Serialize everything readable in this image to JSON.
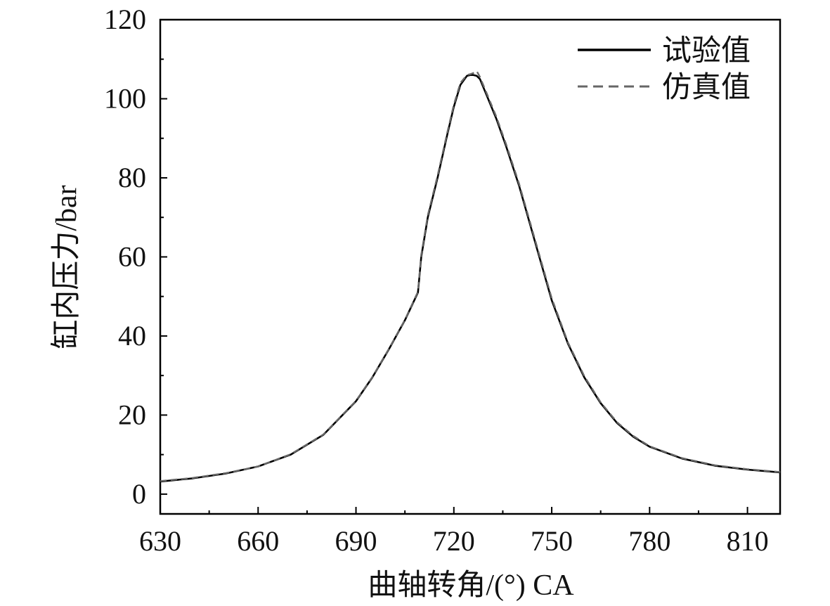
{
  "chart_data": {
    "type": "line",
    "title": "",
    "xlabel": "曲轴转角/(°) CA",
    "ylabel": "缸内压力/bar",
    "xlim": [
      630,
      820
    ],
    "ylim": [
      -5,
      120
    ],
    "xticks": [
      630,
      660,
      690,
      720,
      750,
      780,
      810
    ],
    "yticks": [
      0,
      20,
      40,
      60,
      80,
      100,
      120
    ],
    "grid": false,
    "legend_position": "top-right",
    "series": [
      {
        "name": "试验值",
        "style": "solid",
        "color": "#000000",
        "x": [
          630,
          640,
          650,
          660,
          670,
          680,
          690,
          695,
          700,
          705,
          709,
          710,
          712,
          715,
          718,
          720,
          722,
          724,
          725,
          726,
          727,
          728,
          730,
          733,
          736,
          740,
          745,
          750,
          755,
          760,
          765,
          770,
          775,
          780,
          790,
          800,
          810,
          820
        ],
        "y": [
          3.2,
          4.0,
          5.2,
          7.0,
          10.0,
          15.0,
          23.5,
          29.5,
          36.5,
          44.0,
          51.0,
          60.0,
          70.0,
          80.0,
          91.0,
          98.0,
          103.5,
          105.8,
          106.0,
          106.0,
          105.8,
          105.0,
          101.0,
          95.0,
          88.0,
          78.0,
          63.5,
          49.0,
          38.0,
          29.5,
          23.0,
          18.0,
          14.5,
          12.0,
          9.0,
          7.2,
          6.2,
          5.5
        ]
      },
      {
        "name": "仿真值",
        "style": "dashed",
        "color": "#666666",
        "x": [
          630,
          640,
          650,
          660,
          670,
          680,
          690,
          695,
          700,
          705,
          709,
          710,
          712,
          715,
          718,
          720,
          722,
          724,
          725,
          726,
          727,
          728,
          730,
          733,
          736,
          740,
          745,
          750,
          755,
          760,
          765,
          770,
          775,
          780,
          790,
          800,
          810,
          820
        ],
        "y": [
          3.3,
          4.1,
          5.3,
          7.0,
          10.1,
          15.1,
          23.6,
          29.6,
          36.6,
          44.1,
          51.2,
          60.5,
          70.5,
          80.5,
          91.5,
          98.5,
          104.0,
          106.0,
          106.2,
          106.5,
          107.0,
          105.5,
          101.5,
          95.5,
          88.5,
          78.5,
          64.0,
          49.5,
          38.3,
          29.8,
          23.2,
          18.2,
          14.7,
          12.1,
          9.1,
          7.3,
          6.3,
          5.6
        ]
      }
    ]
  }
}
